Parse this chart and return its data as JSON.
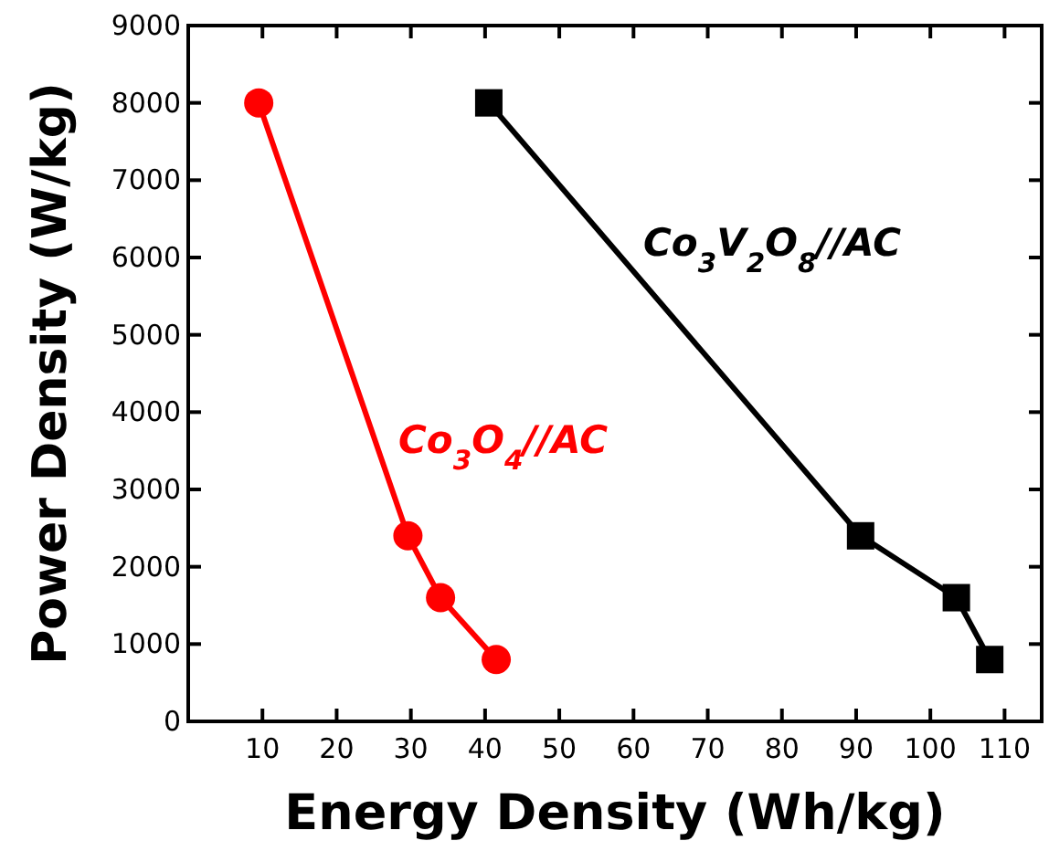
{
  "chart_data": {
    "type": "line",
    "xlabel": "Energy Density (Wh/kg)",
    "ylabel": "Power Density (W/kg)",
    "xlim": [
      0,
      115
    ],
    "xticks": [
      10,
      20,
      30,
      40,
      50,
      60,
      70,
      80,
      90,
      100,
      110
    ],
    "ylim": [
      0,
      9000
    ],
    "yticks": [
      0,
      1000,
      2000,
      3000,
      4000,
      5000,
      6000,
      7000,
      8000,
      9000
    ],
    "grid": false,
    "legend": false,
    "series": [
      {
        "name": "Co$_{3}$O$_{4}$//AC",
        "color": "#ff0000",
        "marker": "circle",
        "x": [
          9.5,
          29.6,
          34,
          41.5
        ],
        "values": [
          8000,
          2400,
          1600,
          800
        ]
      },
      {
        "name": "Co$_{3}$V$_{2}$O$_{8}$//AC",
        "color": "#000000",
        "marker": "square",
        "x": [
          40.5,
          90.6,
          103.5,
          108
        ],
        "values": [
          8000,
          2400,
          1600,
          800
        ]
      }
    ]
  }
}
